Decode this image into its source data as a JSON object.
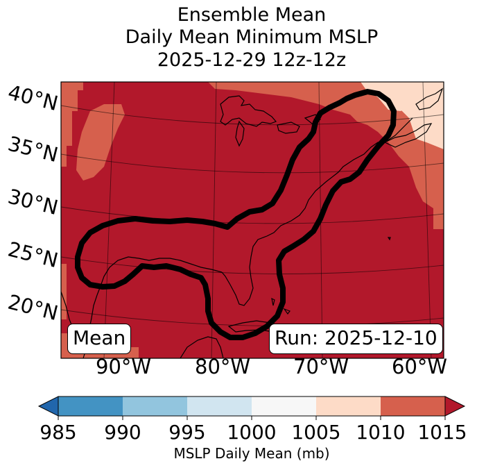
{
  "title": {
    "line1": "Ensemble Mean",
    "line2": "Daily Mean Minimum MSLP",
    "line3": "2025-12-29 12z-12z"
  },
  "map": {
    "lat_labels": [
      "40°N",
      "35°N",
      "30°N",
      "25°N",
      "20°N"
    ],
    "lon_labels": [
      "90°W",
      "80°W",
      "70°W",
      "60°W"
    ],
    "mean_label": "Mean",
    "run_label": "Run: 2025-12-10",
    "field_note": "Daily mean MSLP shaded by colorbar bins; thick black contour outlines the highlighted region"
  },
  "colorbar": {
    "ticks": [
      "985",
      "990",
      "995",
      "1000",
      "1005",
      "1010",
      "1015"
    ],
    "label": "MSLP Daily Mean (mb)",
    "colors": [
      "#2166ac",
      "#4393c3",
      "#92c5de",
      "#d1e5f0",
      "#f7f7f7",
      "#fddbc7",
      "#d6604d",
      "#b2182b"
    ],
    "extend": "both"
  },
  "colors": {
    "field_main": "#b2182b",
    "field_secondary": "#d6604d",
    "field_light": "#fddbc7",
    "contour": "#000000"
  }
}
